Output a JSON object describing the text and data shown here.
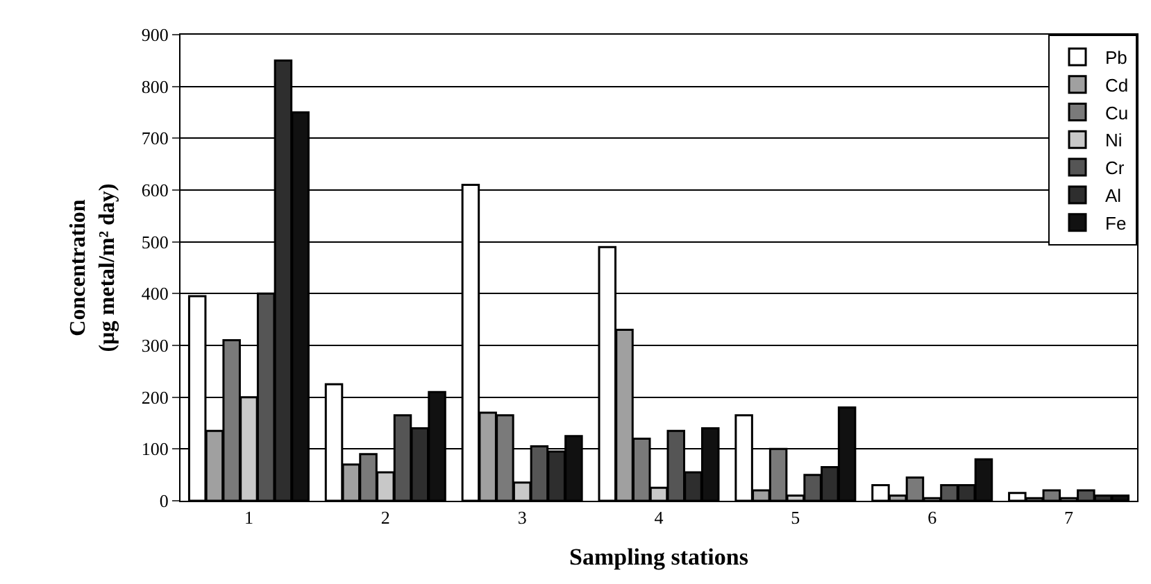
{
  "chart_data": {
    "type": "bar",
    "xlabel": "Sampling stations",
    "ylabel": "Concentration\n(µg metal/m² day)",
    "categories": [
      "1",
      "2",
      "3",
      "4",
      "5",
      "6",
      "7"
    ],
    "series": [
      {
        "name": "Pb",
        "color": "#ffffff",
        "values": [
          395,
          225,
          610,
          490,
          165,
          30,
          15
        ]
      },
      {
        "name": "Cd",
        "color": "#a0a0a0",
        "values": [
          135,
          70,
          170,
          330,
          20,
          10,
          5
        ]
      },
      {
        "name": "Cu",
        "color": "#7a7a7a",
        "values": [
          310,
          90,
          165,
          120,
          100,
          45,
          20
        ]
      },
      {
        "name": "Ni",
        "color": "#c8c8c8",
        "values": [
          200,
          55,
          35,
          25,
          10,
          5,
          5
        ]
      },
      {
        "name": "Cr",
        "color": "#555555",
        "values": [
          400,
          165,
          105,
          135,
          50,
          30,
          20
        ]
      },
      {
        "name": "Al",
        "color": "#2e2e2e",
        "values": [
          850,
          140,
          95,
          55,
          65,
          30,
          10
        ]
      },
      {
        "name": "Fe",
        "color": "#111111",
        "values": [
          750,
          210,
          125,
          140,
          180,
          80,
          10
        ]
      }
    ],
    "ylim": [
      0,
      900
    ],
    "yticks": [
      0,
      100,
      200,
      300,
      400,
      500,
      600,
      700,
      800,
      900
    ],
    "grid": "y",
    "legend": "top right"
  }
}
